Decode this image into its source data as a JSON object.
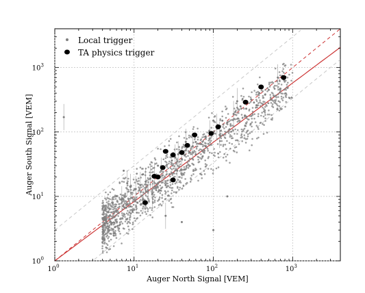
{
  "chart_data": {
    "type": "scatter",
    "xlabel": "Auger North Signal [VEM]",
    "ylabel": "Auger South Signal [VEM]",
    "x_scale": "log",
    "y_scale": "log",
    "xlim": [
      1,
      4000
    ],
    "ylim": [
      1,
      4000
    ],
    "x_ticks": [
      {
        "value": 1,
        "base": "10",
        "exp": "0"
      },
      {
        "value": 10,
        "base": "10",
        "exp": "1"
      },
      {
        "value": 100,
        "base": "10",
        "exp": "2"
      },
      {
        "value": 1000,
        "base": "10",
        "exp": "3"
      }
    ],
    "y_ticks": [
      {
        "value": 1,
        "base": "10",
        "exp": "0"
      },
      {
        "value": 10,
        "base": "10",
        "exp": "1"
      },
      {
        "value": 100,
        "base": "10",
        "exp": "2"
      },
      {
        "value": 1000,
        "base": "10",
        "exp": "3"
      }
    ],
    "grid": true,
    "legend_position": "top-left",
    "colors": {
      "local": "#7f7f7f",
      "ta": "#000000",
      "fit_line": "#cc3333",
      "guide_line": "#c8c8c8"
    },
    "series": [
      {
        "name": "Local trigger",
        "marker": "small grey dots",
        "points": [
          [
            1.3,
            170
          ],
          [
            7.4,
            25
          ],
          [
            8.2,
            16
          ],
          [
            9.0,
            14
          ],
          [
            10.5,
            13
          ],
          [
            12,
            15
          ],
          [
            13,
            22
          ],
          [
            14,
            17
          ],
          [
            15,
            12
          ],
          [
            16,
            19
          ],
          [
            18,
            21
          ],
          [
            20,
            16
          ],
          [
            22,
            25
          ],
          [
            24,
            28
          ],
          [
            26,
            31
          ],
          [
            28,
            22
          ],
          [
            30,
            36
          ],
          [
            33,
            40
          ],
          [
            36,
            45
          ],
          [
            40,
            38
          ],
          [
            45,
            52
          ],
          [
            50,
            48
          ],
          [
            55,
            60
          ],
          [
            60,
            70
          ],
          [
            70,
            65
          ],
          [
            80,
            85
          ],
          [
            90,
            95
          ],
          [
            110,
            120
          ],
          [
            130,
            150
          ],
          [
            150,
            140
          ],
          [
            180,
            190
          ],
          [
            220,
            250
          ],
          [
            260,
            230
          ],
          [
            300,
            320
          ],
          [
            380,
            400
          ],
          [
            500,
            450
          ],
          [
            650,
            700
          ],
          [
            6,
            6
          ],
          [
            7,
            9
          ],
          [
            9,
            7
          ],
          [
            11,
            8
          ],
          [
            13,
            9
          ],
          [
            17,
            11
          ],
          [
            20,
            30
          ],
          [
            25,
            15
          ],
          [
            35,
            25
          ],
          [
            45,
            70
          ],
          [
            60,
            45
          ],
          [
            80,
            60
          ],
          [
            100,
            150
          ],
          [
            120,
            90
          ],
          [
            160,
            110
          ],
          [
            200,
            300
          ],
          [
            250,
            180
          ],
          [
            350,
            260
          ],
          [
            450,
            380
          ],
          [
            40,
            4
          ],
          [
            25,
            5
          ],
          [
            100,
            3
          ],
          [
            150,
            10
          ]
        ]
      },
      {
        "name": "TA physics trigger",
        "marker": "large black dots",
        "points": [
          [
            13.8,
            8
          ],
          [
            18,
            20.5
          ],
          [
            20,
            20
          ],
          [
            23,
            28
          ],
          [
            25,
            50
          ],
          [
            31,
            18
          ],
          [
            31,
            44
          ],
          [
            40,
            48
          ],
          [
            47,
            62
          ],
          [
            58,
            90
          ],
          [
            94,
            95
          ],
          [
            115,
            120
          ],
          [
            255,
            290
          ],
          [
            400,
            500
          ],
          [
            770,
            700
          ]
        ]
      }
    ],
    "reference_lines": {
      "identity": "y = x",
      "fit_slope": 0.92,
      "upper_guide_factor": 3,
      "lower_guide_factor": 0.3333
    }
  }
}
